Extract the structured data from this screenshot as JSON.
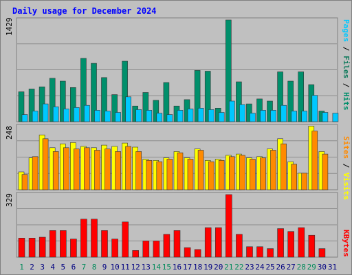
{
  "title": "Daily usage for December 2024",
  "colors": {
    "background": "#c0c0c0",
    "border_dark": "#7f7f7f",
    "grid": "#8c8c8c",
    "title": "#0000ff",
    "pages": "#00c8ff",
    "files": "#107a5c",
    "hits": "#008f6b",
    "visits": "#ffff00",
    "sites": "#ff8a00",
    "kbytes": "#ff0000",
    "slash": "#000000",
    "weekday_label": "#000080",
    "weekend_label": "#008a5a"
  },
  "panels": {
    "top": {
      "ymax_label": "1429",
      "legend": [
        "Pages",
        "/",
        "Files",
        "/",
        "Hits"
      ]
    },
    "middle": {
      "ymax_label": "248",
      "legend": [
        "Sites",
        "/",
        "Visits"
      ]
    },
    "bottom": {
      "ymax_label": "329",
      "legend": [
        "KBytes"
      ]
    }
  },
  "chart_data": {
    "type": "bar",
    "title": "Daily usage for December 2024",
    "categories": [
      "1",
      "2",
      "3",
      "4",
      "5",
      "6",
      "7",
      "8",
      "9",
      "10",
      "11",
      "12",
      "13",
      "14",
      "15",
      "16",
      "17",
      "18",
      "19",
      "20",
      "21",
      "22",
      "23",
      "24",
      "25",
      "26",
      "27",
      "28",
      "29",
      "30",
      "31"
    ],
    "weekend_days": [
      1,
      7,
      8,
      14,
      15,
      21,
      22,
      28,
      29
    ],
    "panels": [
      {
        "name": "top",
        "ylim": [
          0,
          1429
        ],
        "series": [
          {
            "name": "Hits",
            "values": [
              420,
              460,
              490,
              610,
              570,
              480,
              890,
              820,
              620,
              380,
              850,
              220,
              410,
              300,
              550,
              220,
              310,
              720,
              710,
              190,
              1429,
              560,
              250,
              320,
              290,
              700,
              570,
              700,
              520,
              150,
              0
            ]
          },
          {
            "name": "Files",
            "values": [
              0,
              0,
              0,
              0,
              0,
              0,
              0,
              0,
              0,
              0,
              0,
              0,
              0,
              0,
              0,
              0,
              0,
              0,
              0,
              0,
              0,
              0,
              0,
              0,
              0,
              0,
              0,
              0,
              0,
              0,
              0
            ]
          },
          {
            "name": "Pages",
            "values": [
              100,
              150,
              250,
              210,
              180,
              200,
              230,
              160,
              150,
              130,
              350,
              170,
              160,
              120,
              100,
              160,
              180,
              190,
              170,
              130,
              290,
              240,
              120,
              160,
              160,
              230,
              150,
              150,
              370,
              130,
              120
            ]
          }
        ]
      },
      {
        "name": "middle",
        "ylim": [
          0,
          248
        ],
        "series": [
          {
            "name": "Visits",
            "values": [
              70,
              125,
              215,
              165,
              180,
              185,
              170,
              165,
              175,
              170,
              183,
              167,
              120,
              115,
              125,
              150,
              125,
              160,
              115,
              120,
              135,
              140,
              125,
              130,
              160,
              200,
              110,
              65,
              250,
              150,
              0
            ]
          },
          {
            "name": "Sites",
            "values": [
              60,
              130,
              200,
              150,
              165,
              160,
              165,
              155,
              160,
              150,
              170,
              150,
              115,
              110,
              120,
              145,
              120,
              155,
              110,
              115,
              130,
              135,
              120,
              125,
              155,
              180,
              100,
              65,
              230,
              140,
              0
            ]
          }
        ]
      },
      {
        "name": "bottom",
        "ylim": [
          0,
          329
        ],
        "series": [
          {
            "name": "KBytes",
            "values": [
              100,
              100,
              105,
              140,
              140,
              95,
              200,
              200,
              140,
              95,
              185,
              35,
              85,
              85,
              120,
              140,
              50,
              40,
              155,
              155,
              329,
              120,
              55,
              55,
              45,
              150,
              135,
              155,
              115,
              45,
              0
            ]
          }
        ]
      }
    ]
  }
}
